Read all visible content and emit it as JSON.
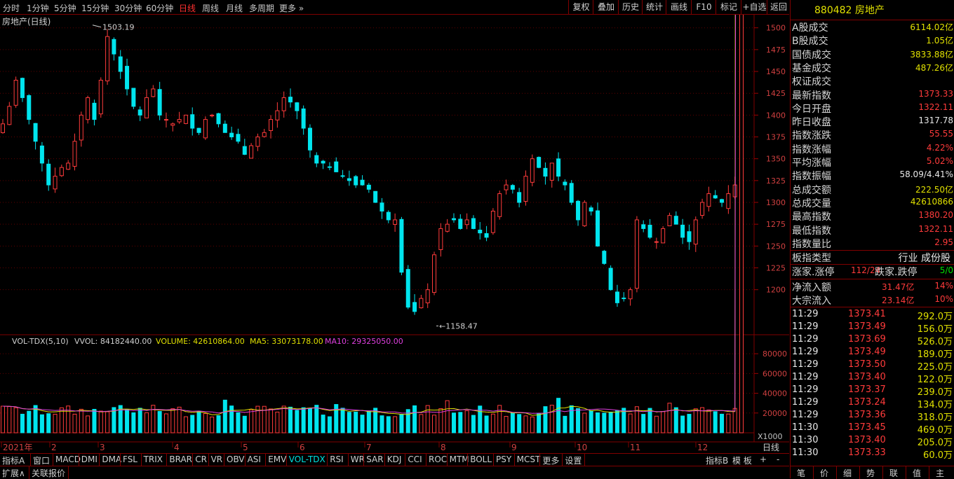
{
  "toolbar": {
    "periods": [
      "分时",
      "1分钟",
      "5分钟",
      "15分钟",
      "30分钟",
      "60分钟",
      "日线",
      "周线",
      "月线",
      "多周期",
      "更多"
    ],
    "active_period": "日线",
    "right_buttons": [
      "复权",
      "叠加",
      "历史",
      "统计",
      "画线",
      "F10",
      "标记",
      "+自选",
      "返回"
    ]
  },
  "chart": {
    "title": "房地产(日线)",
    "max_label": "1503.19",
    "min_label": "1158.47",
    "price_ticks": [
      "1500",
      "1475",
      "1450",
      "1425",
      "1400",
      "1375",
      "1350",
      "1325",
      "1300",
      "1275",
      "1250",
      "1225",
      "1200"
    ],
    "vol_legend": {
      "name": "VOL-TDX(5,10)",
      "vvol": "VVOL: 84182440.00",
      "volume": "VOLUME: 42610864.00",
      "ma5": "MA5: 33073178.00",
      "ma10": "MA10: 29325050.00"
    },
    "vol_ticks": [
      "80000",
      "60000",
      "40000",
      "20000"
    ],
    "vol_unit": "X1000",
    "months": [
      "2021年",
      "2",
      "3",
      "4",
      "5",
      "6",
      "7",
      "8",
      "9",
      "10",
      "11",
      "12"
    ],
    "period_label": "日线"
  },
  "chart_data": {
    "type": "candlestick",
    "title": "房地产(日线)",
    "ylim": [
      1150,
      1515
    ],
    "high": 1503.19,
    "low": 1158.47,
    "series_close_approx": [
      1390,
      1410,
      1440,
      1420,
      1395,
      1370,
      1345,
      1320,
      1330,
      1340,
      1345,
      1370,
      1400,
      1420,
      1395,
      1440,
      1490,
      1470,
      1450,
      1430,
      1410,
      1400,
      1420,
      1430,
      1400,
      1395,
      1390,
      1395,
      1400,
      1385,
      1380,
      1395,
      1400,
      1390,
      1380,
      1375,
      1370,
      1355,
      1365,
      1375,
      1380,
      1395,
      1405,
      1420,
      1415,
      1405,
      1385,
      1360,
      1345,
      1345,
      1340,
      1335,
      1330,
      1325,
      1320,
      1320,
      1315,
      1300,
      1290,
      1280,
      1280,
      1220,
      1180,
      1175,
      1190,
      1200,
      1240,
      1270,
      1275,
      1280,
      1270,
      1280,
      1270,
      1265,
      1260,
      1290,
      1310,
      1320,
      1315,
      1300,
      1330,
      1350,
      1340,
      1330,
      1345,
      1330,
      1320,
      1300,
      1280,
      1300,
      1290,
      1250,
      1230,
      1200,
      1185,
      1190,
      1200,
      1280,
      1270,
      1260,
      1255,
      1270,
      1285,
      1275,
      1260,
      1255,
      1280,
      1300,
      1310,
      1305,
      1300,
      1310,
      1320,
      1373.33
    ],
    "volume_unit": "X1000",
    "last_volume": 42610.864
  },
  "panel": {
    "header": "880482 房地产",
    "stats": [
      {
        "label": "A股成交",
        "value": "6114.02亿",
        "color": "y"
      },
      {
        "label": "B股成交",
        "value": "1.05亿",
        "color": "y"
      },
      {
        "label": "国债成交",
        "value": "3833.88亿",
        "color": "y"
      },
      {
        "label": "基金成交",
        "value": "487.26亿",
        "color": "y"
      },
      {
        "label": "权证成交",
        "value": "",
        "color": "y"
      },
      {
        "label": "最新指数",
        "value": "1373.33",
        "color": "r"
      },
      {
        "label": "今日开盘",
        "value": "1322.11",
        "color": "r"
      },
      {
        "label": "昨日收盘",
        "value": "1317.78",
        "color": "w"
      },
      {
        "label": "指数涨跌",
        "value": "55.55",
        "color": "r"
      },
      {
        "label": "指数涨幅",
        "value": "4.22%",
        "color": "r"
      },
      {
        "label": "平均涨幅",
        "value": "5.02%",
        "color": "r"
      },
      {
        "label": "指数振幅",
        "value": "58.09/4.41%",
        "color": "w"
      },
      {
        "label": "总成交额",
        "value": "222.50亿",
        "color": "y"
      },
      {
        "label": "总成交量",
        "value": "42610866",
        "color": "y"
      },
      {
        "label": "最高指数",
        "value": "1380.20",
        "color": "r"
      },
      {
        "label": "最低指数",
        "value": "1322.11",
        "color": "r"
      },
      {
        "label": "指数量比",
        "value": "2.95",
        "color": "r"
      }
    ],
    "type_label": "板指类型",
    "type_value": "行业 成份股",
    "up_label": "涨家.涨停",
    "up_value": "112/24",
    "down_label": "跌家.跌停",
    "down_value": "5/0",
    "net_label": "净流入额",
    "net_value": "31.47亿",
    "net_pct": "14%",
    "block_label": "大宗流入",
    "block_value": "23.14亿",
    "block_pct": "10%",
    "ticks": [
      {
        "time": "11:29",
        "price": "1373.41",
        "vol": "292.0万"
      },
      {
        "time": "11:29",
        "price": "1373.49",
        "vol": "156.0万"
      },
      {
        "time": "11:29",
        "price": "1373.69",
        "vol": "526.0万"
      },
      {
        "time": "11:29",
        "price": "1373.49",
        "vol": "189.0万"
      },
      {
        "time": "11:29",
        "price": "1373.50",
        "vol": "225.0万"
      },
      {
        "time": "11:29",
        "price": "1373.40",
        "vol": "122.0万"
      },
      {
        "time": "11:29",
        "price": "1373.37",
        "vol": "239.0万"
      },
      {
        "time": "11:29",
        "price": "1373.24",
        "vol": "134.0万"
      },
      {
        "time": "11:29",
        "price": "1373.36",
        "vol": "318.0万"
      },
      {
        "time": "11:30",
        "price": "1373.45",
        "vol": "469.0万"
      },
      {
        "time": "11:30",
        "price": "1373.40",
        "vol": "205.0万"
      },
      {
        "time": "11:30",
        "price": "1373.33",
        "vol": "60.0万"
      }
    ],
    "tabs": [
      "笔",
      "价",
      "细",
      "势",
      "联",
      "值",
      "主"
    ]
  },
  "indicators": [
    "指标A",
    "窗口",
    "MACD",
    "DMI",
    "DMA",
    "FSL",
    "TRIX",
    "BRAR",
    "CR",
    "VR",
    "OBV",
    "ASI",
    "EMV",
    "VOL-TDX",
    "RSI",
    "WR",
    "SAR",
    "KDJ",
    "CCI",
    "ROC",
    "MTM",
    "BOLL",
    "PSY",
    "MCST",
    "更多",
    "设置"
  ],
  "active_indicator": "VOL-TDX",
  "right_controls": [
    "指标B",
    "模 板",
    "+",
    "-"
  ],
  "ext": {
    "expand": "扩展∧",
    "related": "关联报价"
  }
}
